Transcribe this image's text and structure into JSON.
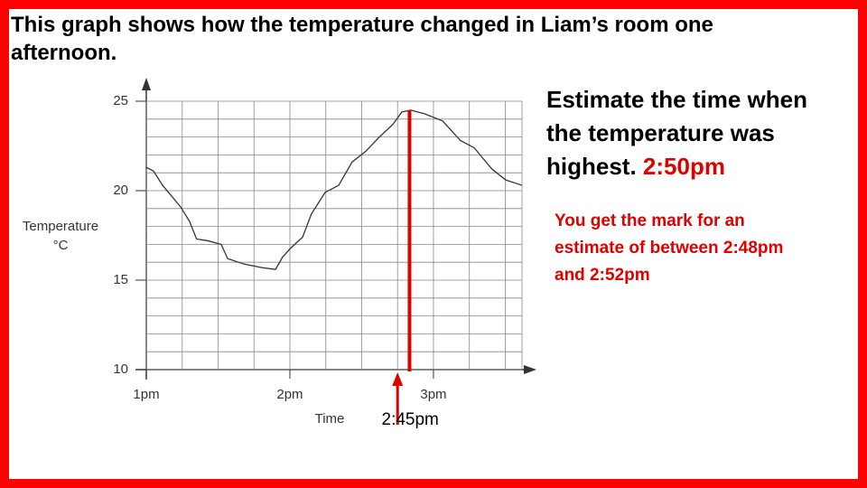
{
  "title": "This graph shows how the temperature changed in Liam’s room one afternoon.",
  "question": "Estimate the time when the temperature was highest.",
  "answer": "2:50pm",
  "note": "You get the mark for an estimate of between 2:48pm and 2:52pm",
  "chart_data": {
    "type": "line",
    "xlabel": "Time",
    "ylabel": "Temperature",
    "yunit": "°C",
    "x": [
      0,
      3,
      6.8,
      14.3,
      18,
      21,
      25.7,
      31.3,
      34,
      40.8,
      48.3,
      54,
      57,
      60.4,
      65.3,
      69,
      74.7,
      80.4,
      86,
      91.7,
      97.4,
      103,
      106.8,
      110.6,
      116.2,
      123.8,
      131.3,
      137,
      144.5,
      150.2,
      157
    ],
    "values": [
      21.3,
      21.1,
      20.3,
      19.1,
      18.3,
      17.3,
      17.2,
      17.0,
      16.2,
      15.9,
      15.7,
      15.6,
      16.3,
      16.8,
      17.4,
      18.7,
      19.9,
      20.3,
      21.6,
      22.2,
      23.0,
      23.7,
      24.4,
      24.5,
      24.3,
      23.9,
      22.8,
      22.4,
      21.2,
      20.6,
      20.3
    ],
    "color": "#333333",
    "xlim": [
      0,
      157
    ],
    "ylim": [
      10,
      25
    ],
    "xticks": [
      {
        "value": 0,
        "label": "1pm"
      },
      {
        "value": 60,
        "label": "2pm"
      },
      {
        "value": 120,
        "label": "3pm"
      }
    ],
    "yticks": [
      10,
      15,
      20,
      25
    ],
    "xgrid": [
      0,
      15,
      30,
      45,
      60,
      75,
      90,
      105,
      120,
      135,
      150,
      157
    ],
    "ygrid": [
      10,
      11,
      12,
      13,
      14,
      15,
      16,
      17,
      18,
      19,
      20,
      21,
      22,
      23,
      24,
      25
    ],
    "marker_line_x": 110,
    "marker_color": "#e00000",
    "arrow_x": 105,
    "arrow_label": "2:45pm"
  }
}
